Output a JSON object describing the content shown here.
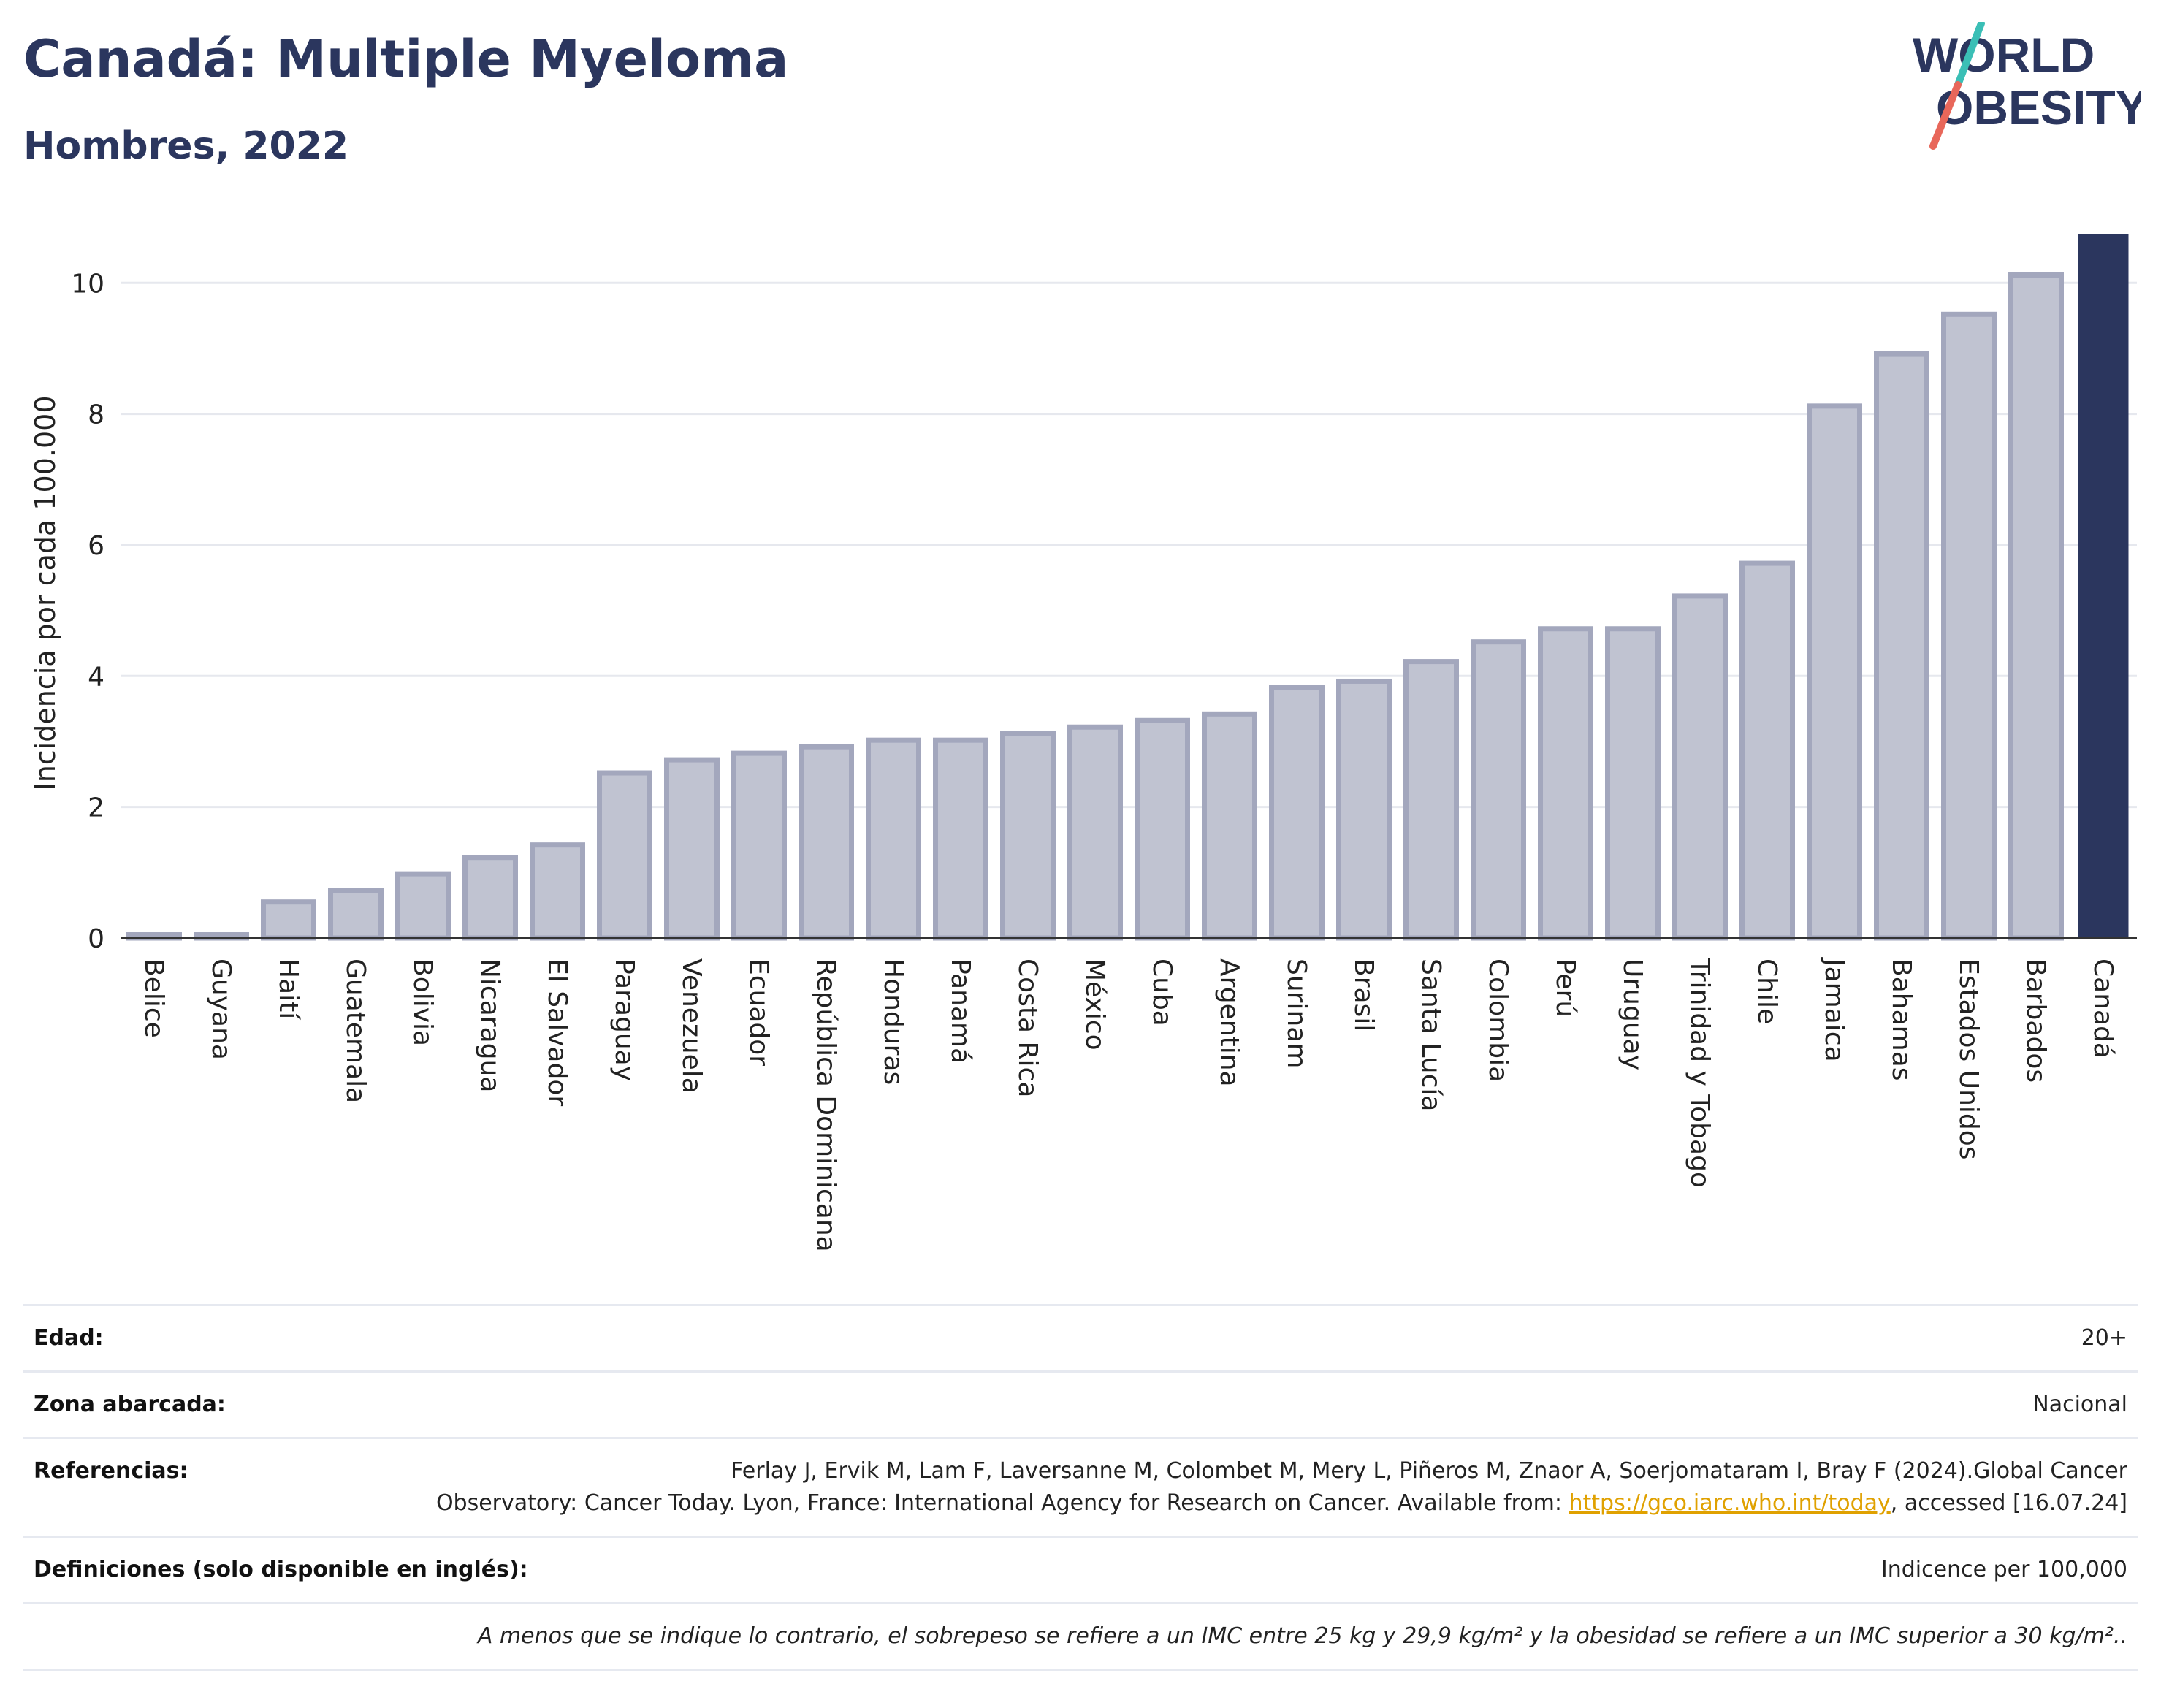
{
  "header": {
    "title": "Canadá: Multiple Myeloma",
    "subtitle": "Hombres, 2022"
  },
  "logo": {
    "line1": "WORLD",
    "line2": "OBESITY",
    "name": "world-obesity-logo"
  },
  "colors": {
    "highlight": "#2b365e",
    "bar_fill": "#c0c3d1",
    "bar_stroke": "#a3a7bd",
    "title": "#2b365e",
    "link": "#e0a100",
    "logo_slash_top": "#3bbfb6",
    "logo_slash_bottom": "#e8675a"
  },
  "chart_data": {
    "type": "bar",
    "categories": [
      "Belice",
      "Guyana",
      "Haití",
      "Guatemala",
      "Bolivia",
      "Nicaragua",
      "El Salvador",
      "Paraguay",
      "Venezuela",
      "Ecuador",
      "República Dominicana",
      "Honduras",
      "Panamá",
      "Costa Rica",
      "México",
      "Cuba",
      "Argentina",
      "Surinam",
      "Brasil",
      "Santa Lucía",
      "Colombia",
      "Perú",
      "Uruguay",
      "Trinidad y Tobago",
      "Chile",
      "Jamaica",
      "Bahamas",
      "Estados Unidos",
      "Barbados",
      "Canadá"
    ],
    "values": [
      0.05,
      0.05,
      0.55,
      0.73,
      0.98,
      1.23,
      1.42,
      2.52,
      2.72,
      2.82,
      2.92,
      3.02,
      3.02,
      3.12,
      3.22,
      3.32,
      3.42,
      3.82,
      3.92,
      4.22,
      4.52,
      4.72,
      4.72,
      5.22,
      5.72,
      8.12,
      8.92,
      9.52,
      10.12,
      10.75
    ],
    "highlight": "Canadá",
    "ylabel": "Incidencia por cada 100.000",
    "yticks": [
      0,
      2,
      4,
      6,
      8,
      10
    ],
    "ylim": [
      0,
      10.75
    ],
    "grid": true
  },
  "meta": {
    "age": {
      "label": "Edad:",
      "value": "20+"
    },
    "area": {
      "label": "Zona abarcada:",
      "value": "Nacional"
    },
    "refs": {
      "label": "Referencias:",
      "line1": "Ferlay J, Ervik M, Lam F, Laversanne M, Colombet M, Mery L, Piñeros M, Znaor A, Soerjomataram I, Bray F (2024).Global Cancer",
      "line2": "Observatory: Cancer Today. Lyon, France: International Agency for Research on Cancer. Available from: ",
      "link": "https://gco.iarc.who.int/today",
      "line3": ", accessed [16.07.24]"
    },
    "defs": {
      "label": "Definiciones (solo disponible en inglés):",
      "value": "Indicence per 100,000"
    },
    "note": "A menos que se indique lo contrario, el sobrepeso se refiere a un IMC entre 25 kg y 29,9 kg/m² y la obesidad se refiere a un IMC superior a 30 kg/m².."
  }
}
